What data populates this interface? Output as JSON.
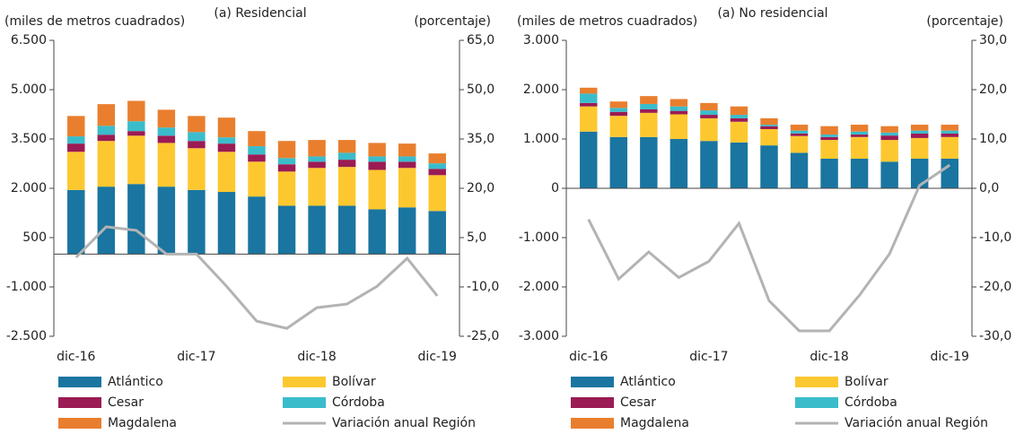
{
  "chart_data": [
    {
      "type": "bar",
      "stacked": true,
      "title": "(a) Residencial",
      "y_label": "(miles de metros cuadrados)",
      "y2_label": "(porcentaje)",
      "categories": [
        "dic-16",
        null,
        null,
        null,
        "dic-17",
        null,
        null,
        null,
        "dic-18",
        null,
        null,
        null,
        "dic-19"
      ],
      "series": [
        {
          "name": "Atlántico",
          "color": "#1a75a0",
          "values": [
            1950,
            2050,
            2130,
            2050,
            1950,
            1890,
            1750,
            1470,
            1470,
            1470,
            1360,
            1420,
            1310
          ]
        },
        {
          "name": "Bolívar",
          "color": "#fdc82f",
          "values": [
            1160,
            1390,
            1470,
            1330,
            1270,
            1220,
            1060,
            1040,
            1150,
            1180,
            1200,
            1200,
            1090
          ]
        },
        {
          "name": "Cesar",
          "color": "#9b1b54",
          "values": [
            250,
            190,
            140,
            220,
            220,
            250,
            220,
            220,
            190,
            220,
            250,
            190,
            190
          ]
        },
        {
          "name": "Córdoba",
          "color": "#3bbccb",
          "values": [
            220,
            270,
            300,
            250,
            270,
            190,
            250,
            190,
            160,
            210,
            160,
            160,
            170
          ]
        },
        {
          "name": "Magdalena",
          "color": "#e97f2e",
          "values": [
            620,
            660,
            620,
            540,
            490,
            600,
            460,
            520,
            500,
            390,
            410,
            390,
            300
          ]
        },
        {
          "name": "Variación anual Región",
          "color": "#b3b3b3",
          "type": "line",
          "axis": "y2",
          "values": [
            -1,
            8.3,
            7.2,
            0,
            0,
            -9.8,
            -20.4,
            -22.6,
            -16.3,
            -15.2,
            -9.8,
            -1.3,
            -12.7
          ]
        }
      ],
      "ylim": [
        -2500,
        6500
      ],
      "yticks": [
        {
          "value": -2500,
          "label": "-2.500"
        },
        {
          "value": -1000,
          "label": "-1.000"
        },
        500,
        {
          "value": 2000,
          "label": "2.000"
        },
        {
          "value": 3500,
          "label": "3.500"
        },
        {
          "value": 5000,
          "label": "5.000"
        },
        {
          "value": 6500,
          "label": "6.500"
        }
      ],
      "y2lim": [
        -25,
        65
      ],
      "y2ticks": [
        {
          "value": -25,
          "label": "-25,0"
        },
        {
          "value": -10,
          "label": "-10,0"
        },
        {
          "value": 5,
          "label": "5,0"
        },
        {
          "value": 20,
          "label": "20,0"
        },
        {
          "value": 35,
          "label": "35,0"
        },
        {
          "value": 50,
          "label": "50,0"
        },
        {
          "value": 65,
          "label": "65,0"
        }
      ]
    },
    {
      "type": "bar",
      "stacked": true,
      "title": "(a) No residencial",
      "y_label": "(miles de metros cuadrados)",
      "y2_label": "(porcentaje)",
      "categories": [
        "dic-16",
        null,
        null,
        null,
        "dic-17",
        null,
        null,
        null,
        "dic-18",
        null,
        null,
        null,
        "dic-19"
      ],
      "series": [
        {
          "name": "Atlántico",
          "color": "#1a75a0",
          "values": [
            1150,
            1040,
            1040,
            1000,
            960,
            930,
            870,
            720,
            600,
            600,
            540,
            600,
            600
          ]
        },
        {
          "name": "Bolívar",
          "color": "#fdc82f",
          "values": [
            510,
            430,
            490,
            500,
            460,
            420,
            330,
            340,
            380,
            440,
            440,
            420,
            440
          ]
        },
        {
          "name": "Cesar",
          "color": "#9b1b54",
          "values": [
            70,
            80,
            70,
            70,
            70,
            70,
            60,
            50,
            60,
            50,
            90,
            90,
            70
          ]
        },
        {
          "name": "Córdoba",
          "color": "#3bbccb",
          "values": [
            190,
            80,
            110,
            90,
            90,
            70,
            30,
            60,
            50,
            60,
            60,
            60,
            60
          ]
        },
        {
          "name": "Magdalena",
          "color": "#e97f2e",
          "values": [
            120,
            130,
            160,
            150,
            150,
            170,
            130,
            120,
            170,
            140,
            130,
            120,
            120
          ]
        },
        {
          "name": "Variación anual Región",
          "color": "#b3b3b3",
          "type": "line",
          "axis": "y2",
          "values": [
            -6.3,
            -18.4,
            -12.9,
            -18.1,
            -14.8,
            -7.1,
            -22.8,
            -28.9,
            -28.9,
            -21.7,
            -13.3,
            0.6,
            4.7
          ]
        }
      ],
      "ylim": [
        -3000,
        3000
      ],
      "yticks": [
        {
          "value": -3000,
          "label": "-3.000"
        },
        {
          "value": -2000,
          "label": "-2.000"
        },
        {
          "value": -1000,
          "label": "-1.000"
        },
        0,
        {
          "value": 1000,
          "label": "1.000"
        },
        {
          "value": 2000,
          "label": "2.000"
        },
        {
          "value": 3000,
          "label": "3.000"
        }
      ],
      "y2lim": [
        -30,
        30
      ],
      "y2ticks": [
        {
          "value": -30,
          "label": "-30,0"
        },
        {
          "value": -20,
          "label": "-20,0"
        },
        {
          "value": -10,
          "label": "-10,0"
        },
        {
          "value": 0,
          "label": "0,0"
        },
        {
          "value": 10,
          "label": "10,0"
        },
        {
          "value": 20,
          "label": "20,0"
        },
        {
          "value": 30,
          "label": "30,0"
        }
      ]
    }
  ]
}
